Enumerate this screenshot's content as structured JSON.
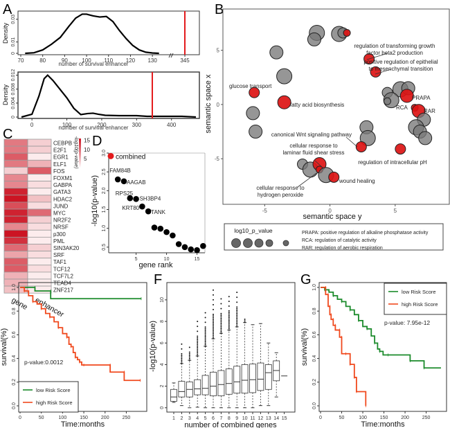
{
  "panel_labels": {
    "A": "A",
    "B": "B",
    "C": "C",
    "D": "D",
    "E": "E",
    "F": "F",
    "G": "G"
  },
  "chart_data": [
    {
      "id": "A1",
      "type": "line",
      "title": "",
      "xlabel": "number of survival enhancer",
      "ylabel": "Density",
      "xlim": [
        70,
        135
      ],
      "ylim": [
        0,
        0.036
      ],
      "xticks": [
        70,
        80,
        90,
        100,
        110,
        120,
        130
      ],
      "yticks": [
        0,
        0.01,
        0.03
      ],
      "broken_axis_tick": "345",
      "marker_value": 345,
      "marker_color": "#e31a1c",
      "x": [
        72,
        76,
        80,
        84,
        88,
        92,
        95,
        98,
        100,
        103,
        106,
        109,
        112,
        115,
        118,
        121,
        124,
        127,
        130,
        133
      ],
      "y": [
        0,
        0.0005,
        0.003,
        0.008,
        0.014,
        0.024,
        0.031,
        0.0345,
        0.0345,
        0.033,
        0.032,
        0.0325,
        0.028,
        0.02,
        0.013,
        0.007,
        0.003,
        0.001,
        0.0003,
        0
      ]
    },
    {
      "id": "A2",
      "type": "line",
      "title": "",
      "xlabel": "number of survival enhancer",
      "ylabel": "Density",
      "xlim": [
        -40,
        480
      ],
      "ylim": [
        0,
        0.0125
      ],
      "xticks": [
        0,
        100,
        200,
        300,
        400
      ],
      "yticks": [
        0,
        0.004,
        0.008,
        0.012
      ],
      "marker_value": 345,
      "marker_color": "#e31a1c",
      "x": [
        -30,
        0,
        20,
        35,
        45,
        60,
        80,
        100,
        120,
        140,
        160,
        175,
        190,
        210,
        250,
        300,
        330,
        360,
        400,
        430,
        470
      ],
      "y": [
        0,
        0.0008,
        0.006,
        0.011,
        0.012,
        0.0105,
        0.008,
        0.0055,
        0.0025,
        0.0007,
        0.001,
        0.0011,
        0.0008,
        0.0005,
        0.0004,
        0.0004,
        0.0002,
        0.0002,
        0.0002,
        0.0002,
        0
      ]
    },
    {
      "id": "B",
      "type": "scatter",
      "title": "",
      "xlabel": "semantic space y",
      "ylabel": "semantic space x",
      "xlim": [
        -8.2,
        9.2
      ],
      "ylim": [
        -9.2,
        8.8
      ],
      "xticks": [
        -5,
        0,
        5
      ],
      "yticks": [
        -5,
        0,
        5
      ],
      "points": [
        {
          "x": -1.0,
          "y": 6.6,
          "size": 4,
          "color": "gray"
        },
        {
          "x": -1.2,
          "y": 6.0,
          "size": 3,
          "color": "gray"
        },
        {
          "x": 0.7,
          "y": 6.5,
          "size": 4,
          "color": "gray"
        },
        {
          "x": 1.0,
          "y": 6.6,
          "size": 2,
          "color": "gray"
        },
        {
          "x": 1.3,
          "y": 6.6,
          "size": 1,
          "color": "red"
        },
        {
          "x": -4.1,
          "y": 4.8,
          "size": 3,
          "color": "gray"
        },
        {
          "x": -3.5,
          "y": 2.6,
          "size": 4,
          "color": "gray"
        },
        {
          "x": -5.8,
          "y": 1.1,
          "size": 2,
          "color": "red",
          "label": "glucose transport"
        },
        {
          "x": -3.5,
          "y": 0.2,
          "size": 3,
          "color": "red",
          "label": "fatty acid biosynthesis"
        },
        {
          "x": -5.9,
          "y": -0.8,
          "size": 3,
          "color": "gray"
        },
        {
          "x": -5.7,
          "y": -2.5,
          "size": 3,
          "color": "gray"
        },
        {
          "x": 3.0,
          "y": 4.2,
          "size": 2,
          "color": "red",
          "label": "regulation of transforming growth factor beta2 production"
        },
        {
          "x": 3.5,
          "y": 3.0,
          "size": 2,
          "color": "red",
          "label": "positive regulation of epithelial to mesenchymal transition"
        },
        {
          "x": 4.4,
          "y": 1.1,
          "size": 2,
          "color": "gray"
        },
        {
          "x": 5.4,
          "y": 1.4,
          "size": 4,
          "color": "gray"
        },
        {
          "x": 6.0,
          "y": 1.5,
          "size": 3,
          "color": "gray"
        },
        {
          "x": 4.7,
          "y": 0.4,
          "size": 4,
          "color": "gray"
        },
        {
          "x": 4.4,
          "y": 0.3,
          "size": 1,
          "color": "gray"
        },
        {
          "x": 5.9,
          "y": 0.8,
          "size": 3,
          "color": "red",
          "label": "PRAPA"
        },
        {
          "x": 6.5,
          "y": -0.3,
          "size": 1,
          "color": "red",
          "label": "RCA"
        },
        {
          "x": 6.8,
          "y": -0.6,
          "size": 3,
          "color": "red",
          "label": "RAR"
        },
        {
          "x": 7.2,
          "y": -1.4,
          "size": 3,
          "color": "gray"
        },
        {
          "x": 6.6,
          "y": -2.1,
          "size": 4,
          "color": "gray"
        },
        {
          "x": 6.9,
          "y": -2.5,
          "size": 3,
          "color": "gray"
        },
        {
          "x": 7.3,
          "y": -3.1,
          "size": 3,
          "color": "gray"
        },
        {
          "x": 2.8,
          "y": -2.1,
          "size": 3,
          "color": "gray"
        },
        {
          "x": 2.9,
          "y": -3.1,
          "size": 4,
          "color": "gray"
        },
        {
          "x": 2.4,
          "y": -3.9,
          "size": 2,
          "color": "red",
          "label": "canonical Wnt signaling pathway"
        },
        {
          "x": 5.4,
          "y": -4.1,
          "size": 2,
          "color": "red",
          "label": "regulation of intracellular pH"
        },
        {
          "x": -2.1,
          "y": -5.5,
          "size": 2,
          "color": "gray"
        },
        {
          "x": -1.5,
          "y": -6.0,
          "size": 4,
          "color": "gray"
        },
        {
          "x": -0.8,
          "y": -5.5,
          "size": 3,
          "color": "red",
          "label": "cellular response to laminar fluid shear stress"
        },
        {
          "x": -0.8,
          "y": -6.0,
          "size": 1,
          "color": "red",
          "label": "cellular response to hydrogen peroxide"
        },
        {
          "x": -0.3,
          "y": -6.5,
          "size": 4,
          "color": "gray"
        },
        {
          "x": 0.3,
          "y": -6.7,
          "size": 2,
          "color": "red",
          "label": "wound healing"
        }
      ],
      "legend": {
        "size_title": "log10_p_value",
        "abbreviations": [
          "PRAPA: positive regulation of alkaline phosphatase activity",
          "RCA: regulation of catalytic activity",
          "RAR: regulation of aerobic respiration"
        ]
      }
    },
    {
      "id": "C",
      "type": "heatmap",
      "title": "",
      "columns": [
        "gene",
        "enhancer"
      ],
      "rows": [
        "CEBPB",
        "E2F1",
        "EGR1",
        "ELF1",
        "FOS",
        "FOXM1",
        "GABPA",
        "GATA3",
        "HDAC2",
        "JUND",
        "MYC",
        "NR2F2",
        "NRSF",
        "p300",
        "PML",
        "SIN3AK20",
        "SRF",
        "TAF1",
        "TCF12",
        "TCF7L2",
        "TEAD4",
        "ZNF217"
      ],
      "values": [
        [
          9,
          3
        ],
        [
          9,
          3
        ],
        [
          11,
          1
        ],
        [
          9,
          5
        ],
        [
          3,
          11
        ],
        [
          8,
          1
        ],
        [
          8,
          2
        ],
        [
          15,
          1
        ],
        [
          16,
          4
        ],
        [
          12,
          2
        ],
        [
          15,
          10
        ],
        [
          15,
          3
        ],
        [
          8,
          2
        ],
        [
          16,
          1
        ],
        [
          14,
          1
        ],
        [
          10,
          3
        ],
        [
          6,
          2
        ],
        [
          11,
          1
        ],
        [
          11,
          2
        ],
        [
          5,
          1
        ],
        [
          5,
          1
        ],
        [
          4,
          1
        ]
      ],
      "colorbar_label": "-log10(p-value)",
      "colorbar_ticks": [
        5,
        10,
        15
      ],
      "vmax": 16
    },
    {
      "id": "D",
      "type": "scatter",
      "title": "",
      "xlabel": "gene rank",
      "ylabel": "-log10(p-value)",
      "xlim": [
        0.5,
        16.3
      ],
      "ylim": [
        0.35,
        3.0
      ],
      "xticks": [
        5,
        10,
        15
      ],
      "yticks": [
        0.5,
        1.0,
        1.5,
        2.0,
        2.5,
        3.0
      ],
      "legend": "combined",
      "combined": {
        "x": 0.5,
        "y": 2.92
      },
      "x": [
        2,
        3,
        4,
        5,
        6,
        7,
        8,
        9,
        10,
        11,
        12,
        13,
        14,
        15,
        16
      ],
      "y": [
        2.3,
        2.25,
        1.8,
        1.78,
        1.58,
        1.45,
        1.02,
        0.99,
        0.9,
        0.81,
        0.58,
        0.5,
        0.44,
        0.42,
        0.53
      ],
      "labels": [
        "FAM84B",
        "AAGAB",
        "RPS25",
        "SH3BP4",
        "KRT80",
        "TANK",
        "",
        "",
        "",
        "",
        "",
        "",
        "",
        "",
        ""
      ]
    },
    {
      "id": "E",
      "type": "line",
      "title": "",
      "xlabel": "Time:months",
      "ylabel": "survival(%)",
      "xlim": [
        0,
        290
      ],
      "ylim": [
        0,
        1.0
      ],
      "xticks": [
        0,
        50,
        100,
        150,
        200,
        250
      ],
      "yticks": [
        0.0,
        0.2,
        0.4,
        0.6,
        0.8,
        1.0
      ],
      "annotation": "p-value:0.0012",
      "series": [
        {
          "name": "low Risk Score",
          "color": "#1a8a2a",
          "x": [
            0,
            35,
            35,
            72,
            72,
            285
          ],
          "y": [
            1.0,
            1.0,
            0.97,
            0.97,
            0.905,
            0.905
          ]
        },
        {
          "name": "high Risk Score",
          "color": "#f0481c",
          "x": [
            0,
            10,
            20,
            30,
            40,
            50,
            60,
            70,
            80,
            90,
            100,
            110,
            115,
            120,
            125,
            130,
            135,
            140,
            145,
            150,
            170,
            212,
            212,
            245,
            245,
            283
          ],
          "y": [
            1.0,
            0.97,
            0.93,
            0.88,
            0.86,
            0.82,
            0.78,
            0.75,
            0.71,
            0.66,
            0.61,
            0.58,
            0.52,
            0.5,
            0.45,
            0.41,
            0.39,
            0.37,
            0.345,
            0.345,
            0.345,
            0.345,
            0.285,
            0.285,
            0.215,
            0.215
          ]
        }
      ]
    },
    {
      "id": "F",
      "type": "box",
      "title": "",
      "xlabel": "number of combined genes",
      "ylabel": "-log10(p-value)",
      "xlim": [
        0.2,
        15.8
      ],
      "ylim": [
        -0.4,
        11.6
      ],
      "categories": [
        "1",
        "2",
        "3",
        "4",
        "5",
        "6",
        "7",
        "8",
        "9",
        "10",
        "11",
        "12",
        "13",
        "14",
        "15"
      ],
      "yticks": [
        0,
        2,
        4,
        6,
        8,
        10
      ],
      "boxes": [
        {
          "min": 0.5,
          "q1": 0.6,
          "median": 1.0,
          "q3": 1.7,
          "max": 2.3,
          "out_max": 2.3
        },
        {
          "min": 0.2,
          "q1": 1.0,
          "median": 1.5,
          "q3": 2.45,
          "max": 4.1,
          "out_max": 5.9
        },
        {
          "min": 0.0,
          "q1": 1.0,
          "median": 1.7,
          "q3": 2.4,
          "max": 4.4,
          "out_max": 5.9
        },
        {
          "min": 0.05,
          "q1": 1.2,
          "median": 1.75,
          "q3": 2.6,
          "max": 4.8,
          "out_max": 8.3
        },
        {
          "min": 0.0,
          "q1": 1.2,
          "median": 1.8,
          "q3": 3.0,
          "max": 5.7,
          "out_max": 9.1
        },
        {
          "min": 0.0,
          "q1": 1.1,
          "median": 2.0,
          "q3": 3.3,
          "max": 6.4,
          "out_max": 10.9
        },
        {
          "min": 0.0,
          "q1": 1.1,
          "median": 2.15,
          "q3": 3.45,
          "max": 6.9,
          "out_max": 10.4
        },
        {
          "min": 0.0,
          "q1": 1.25,
          "median": 2.25,
          "q3": 3.6,
          "max": 7.2,
          "out_max": 10.6
        },
        {
          "min": 0.0,
          "q1": 1.35,
          "median": 2.4,
          "q3": 3.85,
          "max": 7.5,
          "out_max": 11.0
        },
        {
          "min": 0.0,
          "q1": 1.35,
          "median": 2.55,
          "q3": 4.0,
          "max": 7.9,
          "out_max": 8.5
        },
        {
          "min": 0.0,
          "q1": 1.4,
          "median": 2.6,
          "q3": 4.05,
          "max": 7.7,
          "out_max": 7.7
        },
        {
          "min": 0.2,
          "q1": 1.6,
          "median": 2.65,
          "q3": 4.15,
          "max": 7.8,
          "out_max": 7.8
        },
        {
          "min": 0.2,
          "q1": 1.7,
          "median": 3.25,
          "q3": 4.0,
          "max": 6.0,
          "out_max": 6.0
        },
        {
          "min": 1.0,
          "q1": 2.5,
          "median": 3.45,
          "q3": 4.35,
          "max": 5.1,
          "out_max": 5.1
        },
        {
          "min": 2.95,
          "q1": 2.95,
          "median": 2.95,
          "q3": 2.95,
          "max": 2.95,
          "out_max": 2.95
        }
      ]
    },
    {
      "id": "G",
      "type": "line",
      "title": "",
      "xlabel": "Time:months",
      "ylabel": "survival(%)",
      "xlim": [
        0,
        290
      ],
      "ylim": [
        0,
        1.0
      ],
      "xticks": [
        0,
        50,
        100,
        150,
        200,
        250
      ],
      "yticks": [
        0.0,
        0.2,
        0.4,
        0.6,
        0.8,
        1.0
      ],
      "annotation": "p-value: 7.95e-12",
      "series": [
        {
          "name": "low Risk Score",
          "color": "#1a8a2a",
          "x": [
            0,
            10,
            20,
            30,
            40,
            50,
            60,
            70,
            80,
            90,
            100,
            110,
            120,
            128,
            135,
            140,
            148,
            160,
            212,
            212,
            245,
            245,
            285
          ],
          "y": [
            1.0,
            0.98,
            0.96,
            0.93,
            0.9,
            0.88,
            0.84,
            0.81,
            0.77,
            0.72,
            0.67,
            0.65,
            0.59,
            0.53,
            0.48,
            0.46,
            0.43,
            0.43,
            0.43,
            0.38,
            0.38,
            0.32,
            0.32
          ]
        },
        {
          "name": "high Risk Score",
          "color": "#f0481c",
          "x": [
            0,
            12,
            12,
            18,
            18,
            22,
            22,
            25,
            25,
            30,
            30,
            35,
            35,
            45,
            45,
            50,
            50,
            60,
            70,
            70,
            80,
            80,
            85,
            85,
            107,
            107
          ],
          "y": [
            1.0,
            1.0,
            0.94,
            0.94,
            0.84,
            0.84,
            0.77,
            0.77,
            0.73,
            0.73,
            0.68,
            0.68,
            0.64,
            0.64,
            0.58,
            0.58,
            0.44,
            0.44,
            0.44,
            0.35,
            0.35,
            0.24,
            0.24,
            0.12,
            0.12,
            0.0
          ]
        }
      ]
    }
  ]
}
